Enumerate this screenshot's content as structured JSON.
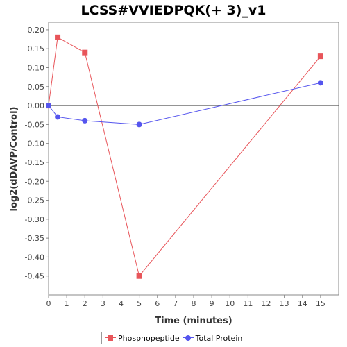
{
  "chart_data": {
    "type": "line",
    "title": "LCSS#VVIEDPQK(+ 3)_v1",
    "xlabel": "Time (minutes)",
    "ylabel": "log2(dDAVP/Control)",
    "xlim": [
      0,
      16
    ],
    "ylim": [
      -0.5,
      0.22
    ],
    "xticks": [
      0,
      1,
      2,
      3,
      4,
      5,
      6,
      7,
      8,
      9,
      10,
      11,
      12,
      13,
      14,
      15
    ],
    "yticks": [
      0.2,
      0.15,
      0.1,
      0.05,
      0.0,
      -0.05,
      -0.1,
      -0.15,
      -0.2,
      -0.25,
      -0.3,
      -0.35,
      -0.4,
      -0.45
    ],
    "ytick_labels": [
      "0.20",
      "0.15",
      "0.10",
      "0.05",
      "0.00",
      "-0.05",
      "-0.10",
      "-0.15",
      "-0.20",
      "-0.25",
      "-0.30",
      "-0.35",
      "-0.40",
      "-0.45"
    ],
    "zero_line": true,
    "legend_position": "bottom",
    "series": [
      {
        "name": "Phosphopeptide",
        "marker": "square",
        "color": "#e8555a",
        "x": [
          0,
          0.5,
          2,
          5,
          15
        ],
        "y": [
          0.0,
          0.18,
          0.14,
          -0.45,
          0.13
        ]
      },
      {
        "name": "Total Protein",
        "marker": "circle",
        "color": "#5555ee",
        "x": [
          0,
          0.5,
          2,
          5,
          15
        ],
        "y": [
          0.0,
          -0.03,
          -0.04,
          -0.05,
          0.06
        ]
      }
    ]
  }
}
